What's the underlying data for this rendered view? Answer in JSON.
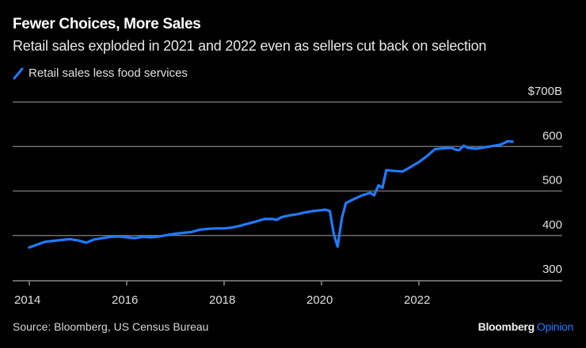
{
  "header": {
    "title": "Fewer Choices, More Sales",
    "subtitle": "Retail sales exploded in 2021 and 2022 even as sellers cut back on selection"
  },
  "legend": {
    "label": "Retail sales less food services",
    "color": "#1f7bff"
  },
  "footer": {
    "source": "Source: Bloomberg, US Census Bureau",
    "brand_primary": "Bloomberg",
    "brand_secondary": "Opinion"
  },
  "colors": {
    "background": "#000000",
    "line": "#1f7bff",
    "gridline": "#6e6e6e",
    "brand_accent": "#1f7bff"
  },
  "chart_data": {
    "type": "line",
    "title": "Fewer Choices, More Sales",
    "subtitle": "Retail sales exploded in 2021 and 2022 even as sellers cut back on selection",
    "xlabel": "",
    "ylabel": "",
    "y_unit_label": "$700B",
    "ylim": [
      300,
      700
    ],
    "xlim": [
      2014.0,
      2024.0
    ],
    "grid": true,
    "legend_position": "top-left",
    "y_ticks": [
      {
        "value": 700,
        "label": "$700B"
      },
      {
        "value": 600,
        "label": "600"
      },
      {
        "value": 500,
        "label": "500"
      },
      {
        "value": 400,
        "label": "400"
      },
      {
        "value": 300,
        "label": "300"
      }
    ],
    "x_ticks": [
      {
        "value": 2014,
        "label": "2014"
      },
      {
        "value": 2016,
        "label": "2016"
      },
      {
        "value": 2018,
        "label": "2018"
      },
      {
        "value": 2020,
        "label": "2020"
      },
      {
        "value": 2022,
        "label": "2022"
      }
    ],
    "series": [
      {
        "name": "Retail sales less food services",
        "color": "#1f7bff",
        "x": [
          2014.0,
          2014.17,
          2014.33,
          2014.5,
          2014.67,
          2014.83,
          2015.0,
          2015.17,
          2015.33,
          2015.5,
          2015.67,
          2015.83,
          2016.0,
          2016.17,
          2016.33,
          2016.5,
          2016.67,
          2016.83,
          2017.0,
          2017.17,
          2017.33,
          2017.5,
          2017.67,
          2017.83,
          2018.0,
          2018.17,
          2018.33,
          2018.5,
          2018.67,
          2018.83,
          2019.0,
          2019.08,
          2019.17,
          2019.33,
          2019.5,
          2019.67,
          2019.83,
          2020.0,
          2020.08,
          2020.17,
          2020.25,
          2020.33,
          2020.42,
          2020.5,
          2020.67,
          2020.83,
          2021.0,
          2021.08,
          2021.17,
          2021.25,
          2021.33,
          2021.5,
          2021.67,
          2021.83,
          2022.0,
          2022.17,
          2022.33,
          2022.5,
          2022.67,
          2022.75,
          2022.83,
          2022.92,
          2023.0,
          2023.17,
          2023.33,
          2023.5,
          2023.67,
          2023.75,
          2023.83,
          2023.92
        ],
        "values": [
          373,
          380,
          386,
          388,
          390,
          392,
          389,
          384,
          391,
          394,
          397,
          398,
          396,
          394,
          397,
          396,
          398,
          401,
          404,
          406,
          408,
          413,
          415,
          416,
          416,
          418,
          422,
          427,
          432,
          437,
          437,
          435,
          441,
          445,
          448,
          452,
          455,
          457,
          458,
          455,
          404,
          375,
          440,
          473,
          482,
          490,
          496,
          490,
          513,
          507,
          547,
          545,
          544,
          554,
          565,
          579,
          594,
          596,
          597,
          593,
          592,
          602,
          597,
          595,
          598,
          601,
          604,
          608,
          612,
          611
        ]
      }
    ]
  }
}
